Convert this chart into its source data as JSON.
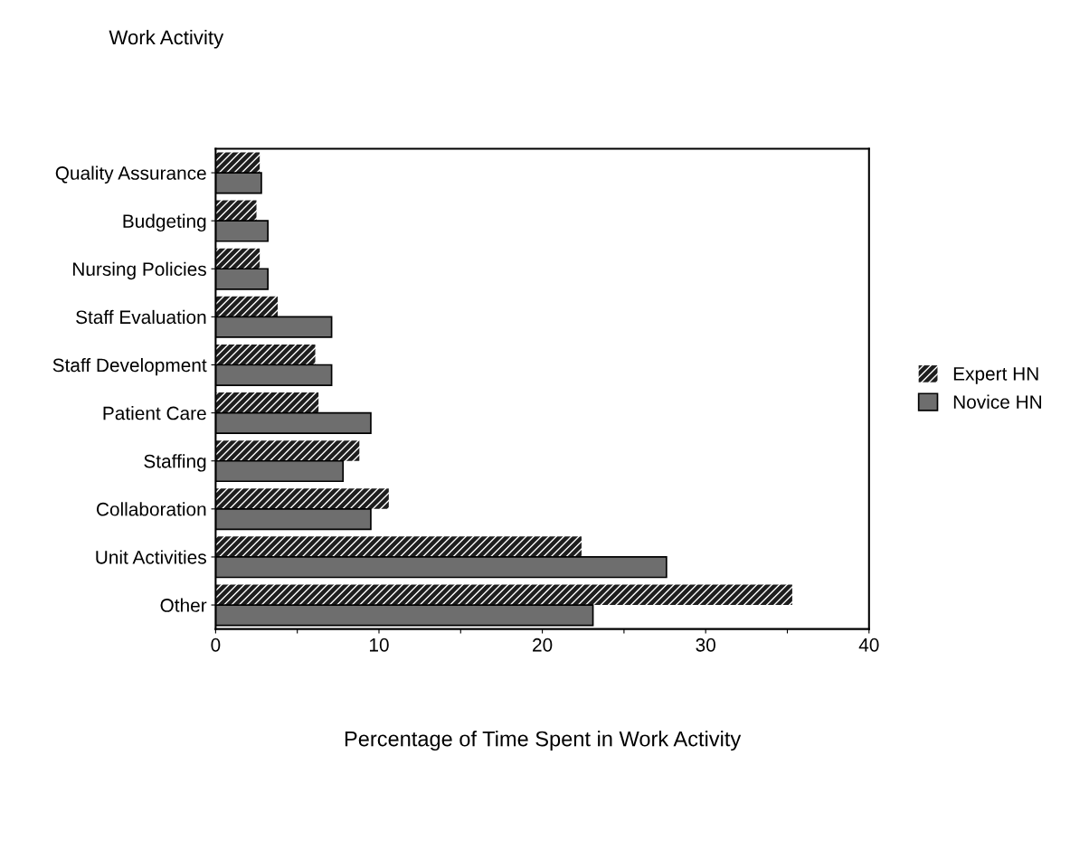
{
  "chart_data": {
    "type": "bar",
    "orientation": "horizontal",
    "title": "Work Activity",
    "xlabel": "Percentage of Time Spent in Work Activity",
    "categories": [
      "Quality Assurance",
      "Budgeting",
      "Nursing Policies",
      "Staff Evaluation",
      "Staff Development",
      "Patient Care",
      "Staffing",
      "Collaboration",
      "Unit Activities",
      "Other"
    ],
    "series": [
      {
        "name": "Expert HN",
        "color": "#1e1e1e",
        "values": [
          2.7,
          2.5,
          2.7,
          3.8,
          6.1,
          6.3,
          8.8,
          10.6,
          22.4,
          35.3
        ]
      },
      {
        "name": "Novice HN",
        "color": "#6e6e6e",
        "values": [
          2.8,
          3.2,
          3.2,
          7.1,
          7.1,
          9.5,
          7.8,
          9.5,
          27.6,
          23.1
        ]
      }
    ],
    "xlim": [
      0,
      40
    ],
    "xticks": [
      0,
      {
        "value": 5,
        "label": null
      },
      10,
      {
        "value": 15,
        "label": null
      },
      20,
      {
        "value": 25,
        "label": null
      },
      30,
      {
        "value": 35,
        "label": null
      },
      40
    ],
    "grid": false,
    "legend": "right"
  }
}
